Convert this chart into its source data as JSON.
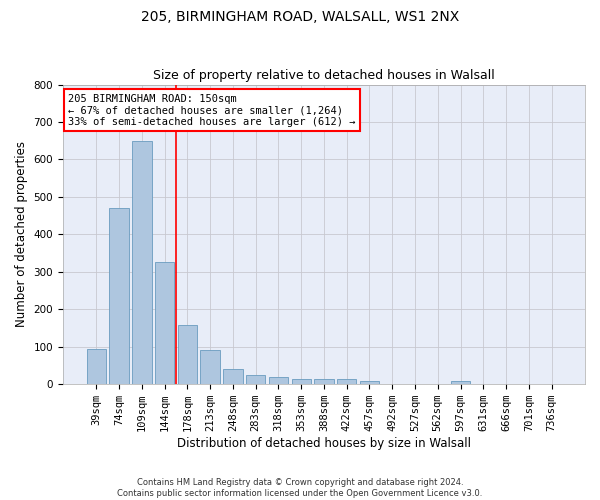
{
  "title1": "205, BIRMINGHAM ROAD, WALSALL, WS1 2NX",
  "title2": "Size of property relative to detached houses in Walsall",
  "xlabel": "Distribution of detached houses by size in Walsall",
  "ylabel": "Number of detached properties",
  "footnote": "Contains HM Land Registry data © Crown copyright and database right 2024.\nContains public sector information licensed under the Open Government Licence v3.0.",
  "categories": [
    "39sqm",
    "74sqm",
    "109sqm",
    "144sqm",
    "178sqm",
    "213sqm",
    "248sqm",
    "283sqm",
    "318sqm",
    "353sqm",
    "388sqm",
    "422sqm",
    "457sqm",
    "492sqm",
    "527sqm",
    "562sqm",
    "597sqm",
    "631sqm",
    "666sqm",
    "701sqm",
    "736sqm"
  ],
  "values": [
    94,
    470,
    648,
    325,
    158,
    92,
    40,
    25,
    18,
    15,
    14,
    14,
    9,
    0,
    0,
    0,
    9,
    0,
    0,
    0,
    0
  ],
  "bar_color": "#aec6df",
  "bar_edge_color": "#6a9cbf",
  "annotation_line1": "205 BIRMINGHAM ROAD: 150sqm",
  "annotation_line2": "← 67% of detached houses are smaller (1,264)",
  "annotation_line3": "33% of semi-detached houses are larger (612) →",
  "annotation_box_color": "white",
  "annotation_box_edge_color": "red",
  "vline_color": "red",
  "vline_x": 3.5,
  "ylim": [
    0,
    800
  ],
  "yticks": [
    0,
    100,
    200,
    300,
    400,
    500,
    600,
    700,
    800
  ],
  "grid_color": "#c8c8d0",
  "bg_color": "#e8edf8",
  "title_fontsize": 10,
  "subtitle_fontsize": 9,
  "label_fontsize": 8.5,
  "tick_fontsize": 7.5,
  "annot_fontsize": 7.5
}
